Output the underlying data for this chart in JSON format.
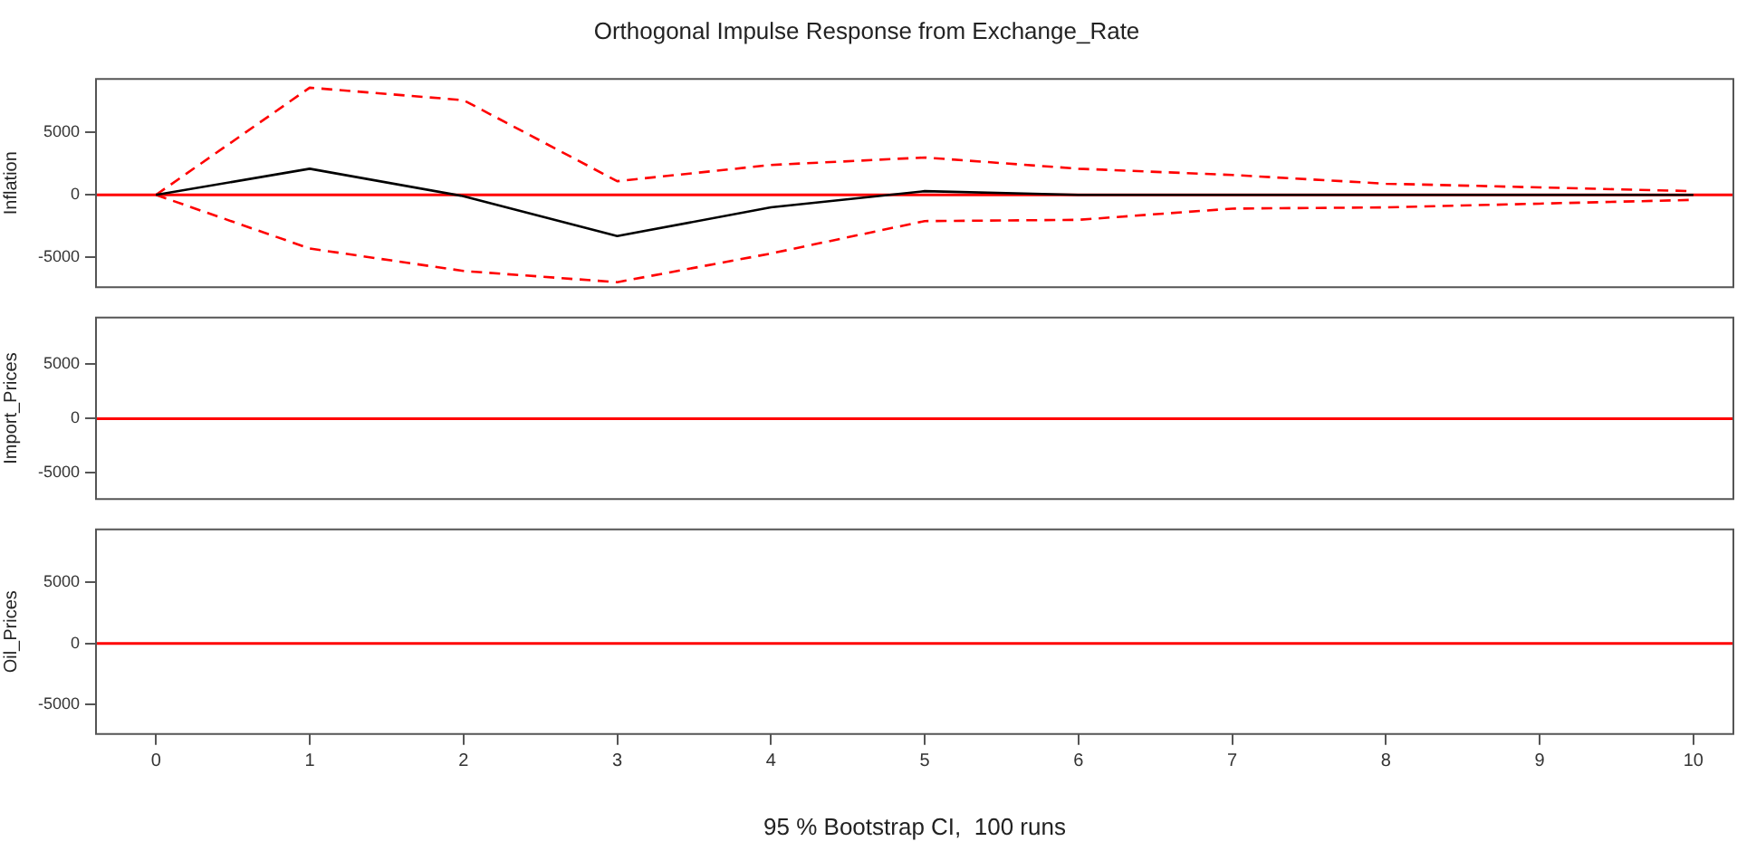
{
  "chart_data": [
    {
      "type": "line",
      "title": "Orthogonal Impulse Response from Exchange_Rate",
      "ylabel": "Inflation",
      "x": [
        0,
        1,
        2,
        3,
        4,
        5,
        6,
        7,
        8,
        9,
        10
      ],
      "xlim": [
        -0.39,
        10.26
      ],
      "ylim": [
        -7400,
        9300
      ],
      "yticks": [
        -5000,
        0,
        5000
      ],
      "tick_labels": "y",
      "grid": false,
      "legend": false,
      "marker": "none",
      "series": [
        {
          "color": "#000000",
          "line_style": "solid",
          "values": [
            0,
            2100,
            -100,
            -3300,
            -1000,
            300,
            0,
            0,
            0,
            0,
            0
          ]
        },
        {
          "color": "#ff0000",
          "line_style": "dashed",
          "values": [
            0,
            8600,
            7600,
            1100,
            2400,
            3000,
            2100,
            1600,
            900,
            600,
            300
          ]
        },
        {
          "color": "#ff0000",
          "line_style": "dashed",
          "values": [
            0,
            -4300,
            -6100,
            -7000,
            -4700,
            -2100,
            -2000,
            -1100,
            -1000,
            -700,
            -400
          ]
        }
      ],
      "ref_lines": [
        {
          "axis": "y",
          "value": 0,
          "color": "#ff0000"
        }
      ]
    },
    {
      "type": "line",
      "ylabel": "Import_Prices",
      "xlim": [
        -0.39,
        10.26
      ],
      "ylim": [
        -7400,
        9300
      ],
      "yticks": [
        -5000,
        0,
        5000
      ],
      "tick_labels": "y",
      "grid": false,
      "legend": false,
      "ref_lines": [
        {
          "axis": "y",
          "value": 0,
          "color": "#ff0000"
        }
      ]
    },
    {
      "type": "line",
      "ylabel": "Oil_Prices",
      "xlabel": "95 % Bootstrap CI,  100 runs",
      "xlim": [
        -0.39,
        10.26
      ],
      "xticks": [
        0,
        1,
        2,
        3,
        4,
        5,
        6,
        7,
        8,
        9,
        10
      ],
      "ylim": [
        -7400,
        9300
      ],
      "yticks": [
        -5000,
        0,
        5000
      ],
      "grid": false,
      "legend": false,
      "ref_lines": [
        {
          "axis": "y",
          "value": 0,
          "color": "#ff0000"
        }
      ]
    }
  ]
}
